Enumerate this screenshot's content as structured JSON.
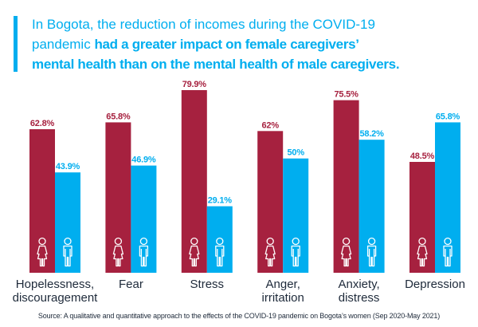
{
  "title": {
    "lines": [
      {
        "regular": "In Bogota, the reduction of incomes during the COVID-19",
        "bold": ""
      },
      {
        "regular": "pandemic ",
        "bold": "had a greater impact on female caregivers’"
      },
      {
        "regular": "",
        "bold": "mental health than on the mental health of male caregivers."
      }
    ]
  },
  "colors": {
    "accent": "#00AEEF",
    "female": "#A6213F",
    "male": "#00AEEF",
    "text": "#1E2A3A",
    "icon_stroke": "#FFFFFF"
  },
  "chart_data": {
    "type": "bar",
    "title": "In Bogota, the reduction of incomes during the COVID-19 pandemic had a greater impact on female caregivers’ mental health than on the mental health of male caregivers.",
    "xlabel": "",
    "ylabel": "",
    "unit": "%",
    "ylim": [
      0,
      100
    ],
    "grid": false,
    "legend": "none (female/male person icons inside bars)",
    "categories": [
      "Hopelessness, discouragement",
      "Fear",
      "Stress",
      "Anger, irritation",
      "Anxiety, distress",
      "Depression"
    ],
    "category_lines": [
      [
        "Hopelessness,",
        "discouragement"
      ],
      [
        "Fear"
      ],
      [
        "Stress"
      ],
      [
        "Anger,",
        "irritation"
      ],
      [
        "Anxiety,",
        "distress"
      ],
      [
        "Depression"
      ]
    ],
    "series": [
      {
        "name": "Female caregivers",
        "icon": "female-person-icon",
        "values": [
          62.8,
          65.8,
          79.9,
          62,
          75.5,
          48.5
        ],
        "labels": [
          "62.8%",
          "65.8%",
          "79.9%",
          "62%",
          "75.5%",
          "48.5%"
        ]
      },
      {
        "name": "Male caregivers",
        "icon": "male-person-icon",
        "values": [
          43.9,
          46.9,
          29.1,
          50,
          58.2,
          65.8
        ],
        "labels": [
          "43.9%",
          "46.9%",
          "29.1%",
          "50%",
          "58.2%",
          "65.8%"
        ]
      }
    ]
  },
  "source": "Source: A qualitative and quantitative approach to the effects of the COVID-19 pandemic on Bogota’s women (Sep 2020-May 2021)"
}
